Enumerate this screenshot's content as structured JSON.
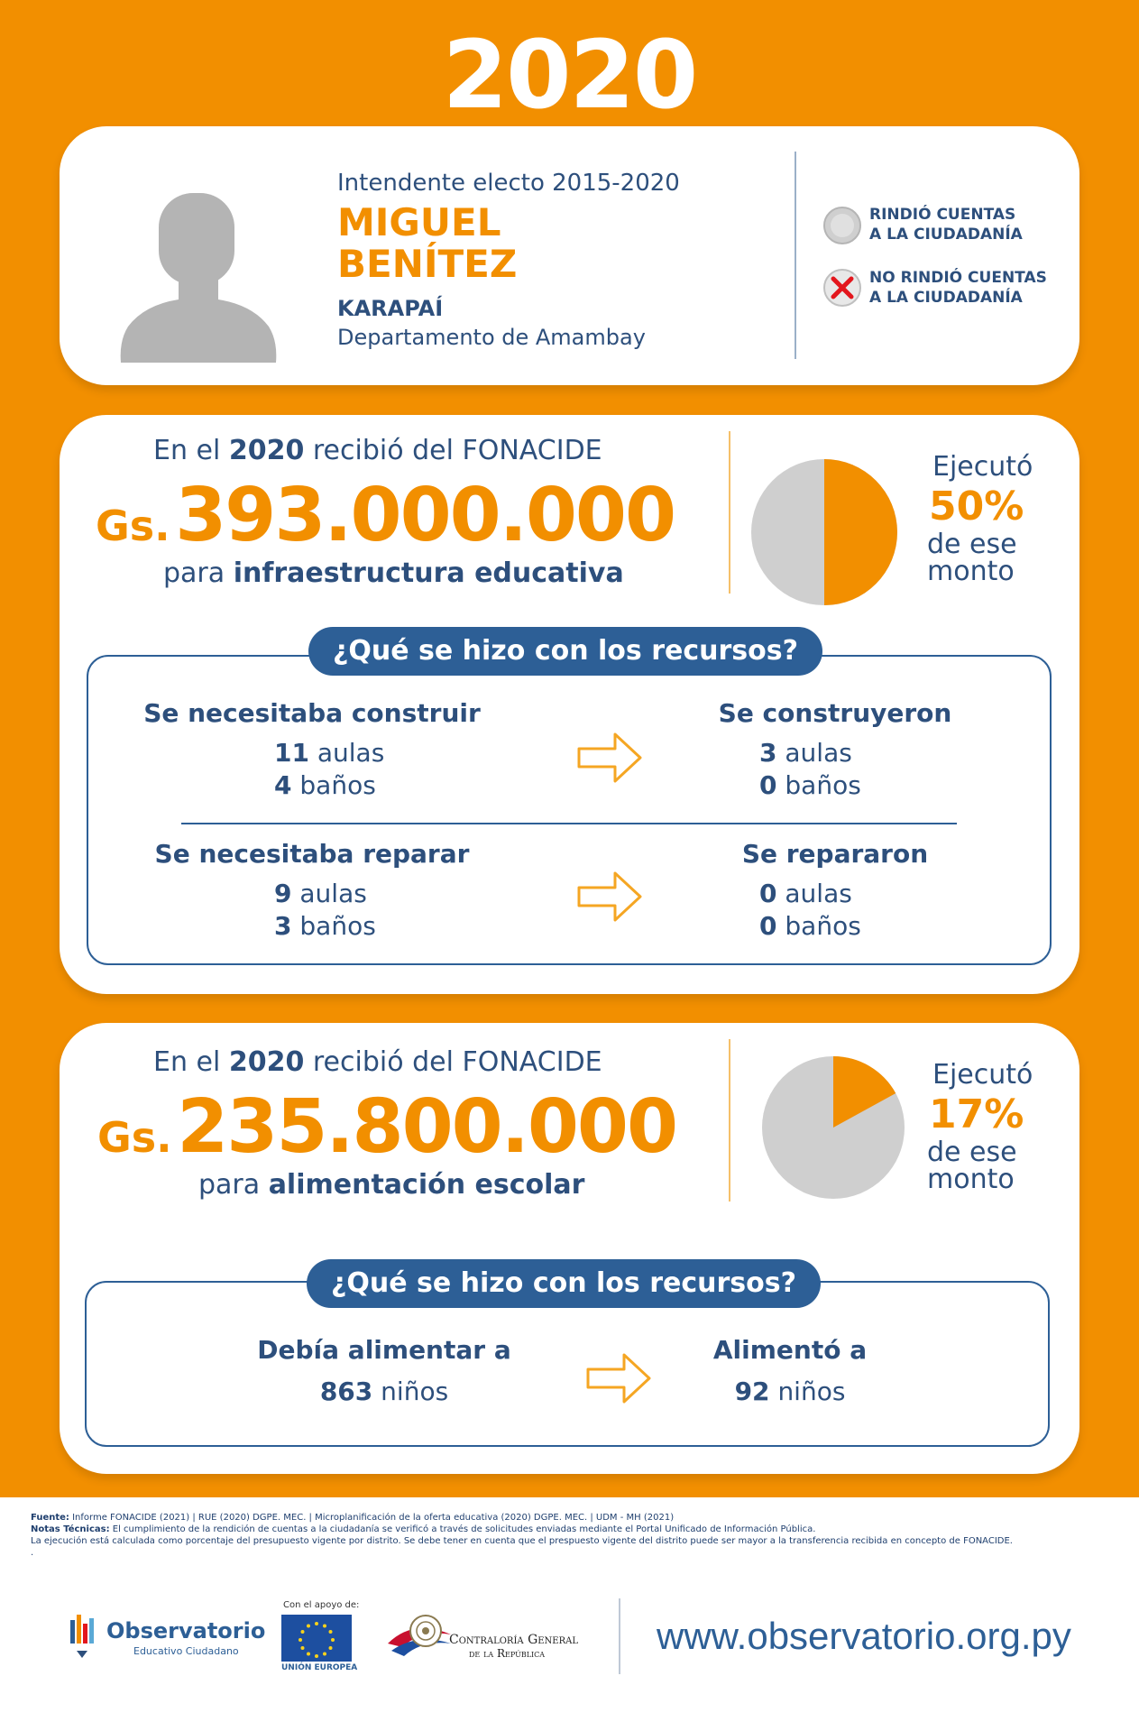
{
  "year": "2020",
  "profile": {
    "role": "Intendente electo 2015-2020",
    "name_line1": "MIGUEL",
    "name_line2": "BENÍTEZ",
    "district": "KARAPAÍ",
    "department": "Departamento de Amambay",
    "legend_rendered_1": "RINDIÓ CUENTAS",
    "legend_rendered_2": "A LA CIUDADANÍA",
    "legend_not_rendered_1": "NO RINDIÓ CUENTAS",
    "legend_not_rendered_2": "A LA CIUDADANÍA",
    "avatar_icon": "person-silhouette-icon",
    "status_icons": [
      "grey-circle-icon",
      "red-x-circle-icon"
    ]
  },
  "infra": {
    "intro_pre": "En el ",
    "intro_year": "2020",
    "intro_post": " recibió del FONACIDE",
    "currency": "Gs.",
    "amount": "393.000.000",
    "purpose_pre": "para ",
    "purpose": "infraestructura educativa",
    "executed_label": "Ejecutó",
    "executed_pct": "50%",
    "executed_suffix_1": "de ese",
    "executed_suffix_2": "monto",
    "pie_fraction": 0.5,
    "question": "¿Qué se hizo con los recursos?",
    "need_build_title": "Se necesitaba construir",
    "need_build_aulas_n": "11",
    "need_build_aulas": "aulas",
    "need_build_banos_n": "4",
    "need_build_banos": "baños",
    "built_title": "Se construyeron",
    "built_aulas_n": "3",
    "built_aulas": "aulas",
    "built_banos_n": "0",
    "built_banos": "baños",
    "need_repair_title": "Se necesitaba reparar",
    "need_repair_aulas_n": "9",
    "need_repair_aulas": "aulas",
    "need_repair_banos_n": "3",
    "need_repair_banos": "baños",
    "repaired_title": "Se repararon",
    "repaired_aulas_n": "0",
    "repaired_aulas": "aulas",
    "repaired_banos_n": "0",
    "repaired_banos": "baños"
  },
  "food": {
    "intro_pre": "En el ",
    "intro_year": "2020",
    "intro_post": " recibió del FONACIDE",
    "currency": "Gs.",
    "amount": "235.800.000",
    "purpose_pre": "para ",
    "purpose": "alimentación escolar",
    "executed_label": "Ejecutó",
    "executed_pct": "17%",
    "executed_suffix_1": "de ese",
    "executed_suffix_2": "monto",
    "pie_fraction": 0.17,
    "question": "¿Qué se hizo con los recursos?",
    "should_title": "Debía alimentar a",
    "should_n": "863",
    "should_unit": "niños",
    "fed_title": "Alimentó a",
    "fed_n": "92",
    "fed_unit": "niños"
  },
  "footer": {
    "fuente_label": "Fuente:",
    "fuente_text": " Informe FONACIDE (2021) | RUE (2020) DGPE. MEC. | Microplanificación de la oferta educativa (2020) DGPE. MEC. | UDM - MH (2021)",
    "notas_label": "Notas Técnicas:",
    "notas_text": "  El cumplimiento de la rendición de cuentas a la ciudadanía se verificó a través de solicitudes enviadas mediante el Portal Unificado de Información Pública.",
    "notas_line2": "La ejecución está calculada como porcentaje del presupuesto vigente por distrito. Se debe tener en cuenta que el prespuesto vigente del distrito puede ser mayor a la transferencia recibida en concepto de FONACIDE.",
    "notas_line3": ".",
    "logo_obs_title": "Observatorio",
    "logo_obs_sub": "Educativo Ciudadano",
    "support_label": "Con el apoyo de:",
    "eu_label": "UNIÓN EUROPEA",
    "contraloria_line1": "Contraloría General",
    "contraloria_line2": "de la República",
    "website": "www.observatorio.org.py"
  },
  "colors": {
    "orange": "#f28f00",
    "blue": "#2d4f7c",
    "grey": "#cfcfcf",
    "red": "#e3161d"
  }
}
